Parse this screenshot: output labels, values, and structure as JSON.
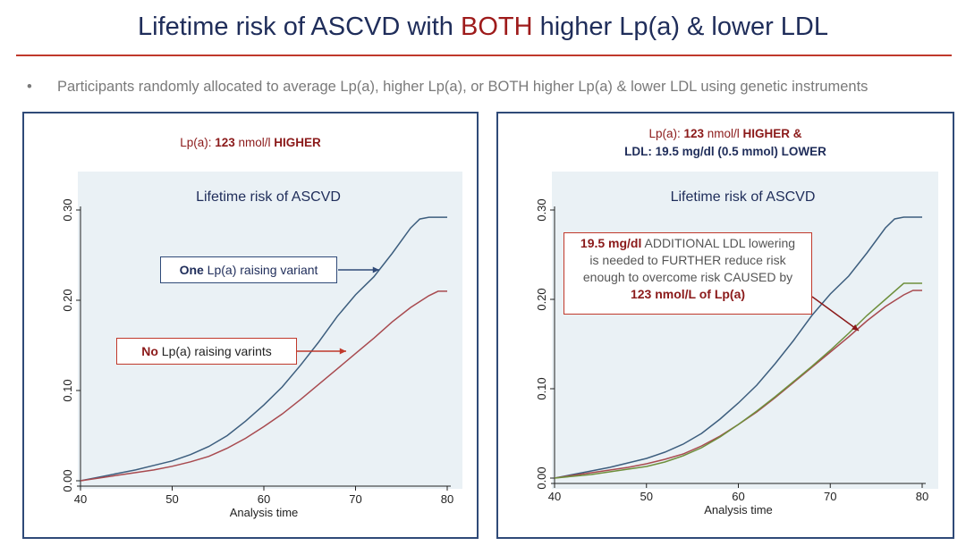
{
  "slide": {
    "title_part1": "Lifetime risk of ASCVD with ",
    "title_accent": "BOTH",
    "title_part2": " higher Lp(a) & lower LDL",
    "bullet_mark": "•",
    "bullet_text": "Participants randomly allocated to average Lp(a), higher Lp(a), or BOTH higher Lp(a) & lower LDL using genetic instruments"
  },
  "left_panel": {
    "caption_a": "Lp(a): ",
    "caption_b": "123",
    "caption_c": " nmol/l ",
    "caption_d": "HIGHER",
    "callout_one_bold": "One",
    "callout_one_rest": " Lp(a) raising variant",
    "callout_no_bold": "No",
    "callout_no_rest": " Lp(a) raising varints"
  },
  "right_panel": {
    "caption1_a": "Lp(a): ",
    "caption1_b": "123",
    "caption1_c": " nmol/l ",
    "caption1_d": "HIGHER &",
    "caption2": "LDL: 19.5 mg/dl (0.5 mmol) LOWER",
    "callout_line1_bold": "19.5 mg/dl",
    "callout_line1_rest": " ADDITIONAL LDL lowering",
    "callout_line2": "is needed to FURTHER reduce risk",
    "callout_line3": "enough to overcome risk CAUSED by",
    "callout_line4": "123 nmol/L of Lp(a)"
  },
  "colors": {
    "blue_series": "#3d5e7e",
    "red_series": "#a84a4f",
    "green_series": "#6e8f3c",
    "plot_bg": "#eaf1f5"
  },
  "chart_data": [
    {
      "type": "line",
      "title": "Lifetime risk of ASCVD",
      "xlabel": "Analysis time",
      "ylabel": "",
      "xlim": [
        40,
        80
      ],
      "ylim": [
        0,
        0.3
      ],
      "xticks": [
        "40",
        "50",
        "60",
        "70",
        "80"
      ],
      "yticks": [
        "0.00",
        "0.10",
        "0.20",
        "0.30"
      ],
      "grid": false,
      "series": [
        {
          "color": "#3d5e7e",
          "x": [
            40,
            42,
            44,
            46,
            48,
            50,
            52,
            54,
            56,
            58,
            60,
            62,
            64,
            66,
            68,
            70,
            72,
            74,
            76,
            77,
            78,
            79,
            80
          ],
          "y": [
            0,
            0.004,
            0.008,
            0.012,
            0.017,
            0.022,
            0.029,
            0.038,
            0.05,
            0.066,
            0.084,
            0.104,
            0.128,
            0.154,
            0.182,
            0.206,
            0.226,
            0.252,
            0.28,
            0.29,
            0.292,
            0.292,
            0.292
          ]
        },
        {
          "color": "#a84a4f",
          "x": [
            40,
            42,
            44,
            46,
            48,
            50,
            52,
            54,
            56,
            58,
            60,
            62,
            64,
            66,
            68,
            70,
            72,
            74,
            76,
            78,
            79,
            80
          ],
          "y": [
            0,
            0.003,
            0.006,
            0.009,
            0.012,
            0.016,
            0.021,
            0.027,
            0.036,
            0.047,
            0.06,
            0.074,
            0.09,
            0.107,
            0.124,
            0.141,
            0.158,
            0.176,
            0.192,
            0.205,
            0.21,
            0.21
          ]
        }
      ]
    },
    {
      "type": "line",
      "title": "Lifetime risk of ASCVD",
      "xlabel": "Analysis time",
      "ylabel": "",
      "xlim": [
        40,
        80
      ],
      "ylim": [
        0,
        0.3
      ],
      "xticks": [
        "40",
        "50",
        "60",
        "70",
        "80"
      ],
      "yticks": [
        "0.00",
        "0.10",
        "0.20",
        "0.30"
      ],
      "grid": false,
      "series": [
        {
          "color": "#3d5e7e",
          "x": [
            40,
            42,
            44,
            46,
            48,
            50,
            52,
            54,
            56,
            58,
            60,
            62,
            64,
            66,
            68,
            70,
            72,
            74,
            76,
            77,
            78,
            79,
            80
          ],
          "y": [
            0,
            0.004,
            0.008,
            0.012,
            0.017,
            0.022,
            0.029,
            0.038,
            0.05,
            0.066,
            0.084,
            0.104,
            0.128,
            0.154,
            0.182,
            0.206,
            0.226,
            0.252,
            0.28,
            0.29,
            0.292,
            0.292,
            0.292
          ]
        },
        {
          "color": "#a84a4f",
          "x": [
            40,
            42,
            44,
            46,
            48,
            50,
            52,
            54,
            56,
            58,
            60,
            62,
            64,
            66,
            68,
            70,
            72,
            74,
            76,
            78,
            79,
            80
          ],
          "y": [
            0,
            0.003,
            0.006,
            0.009,
            0.012,
            0.016,
            0.021,
            0.027,
            0.036,
            0.047,
            0.06,
            0.074,
            0.09,
            0.107,
            0.124,
            0.141,
            0.158,
            0.176,
            0.192,
            0.205,
            0.21,
            0.21
          ]
        },
        {
          "color": "#6e8f3c",
          "x": [
            40,
            42,
            44,
            46,
            48,
            50,
            52,
            54,
            56,
            58,
            60,
            62,
            64,
            66,
            68,
            70,
            72,
            74,
            76,
            78,
            79,
            80
          ],
          "y": [
            0,
            0.002,
            0.004,
            0.007,
            0.01,
            0.013,
            0.018,
            0.025,
            0.034,
            0.046,
            0.06,
            0.075,
            0.091,
            0.108,
            0.125,
            0.143,
            0.162,
            0.182,
            0.2,
            0.218,
            0.218,
            0.218
          ]
        }
      ]
    }
  ]
}
